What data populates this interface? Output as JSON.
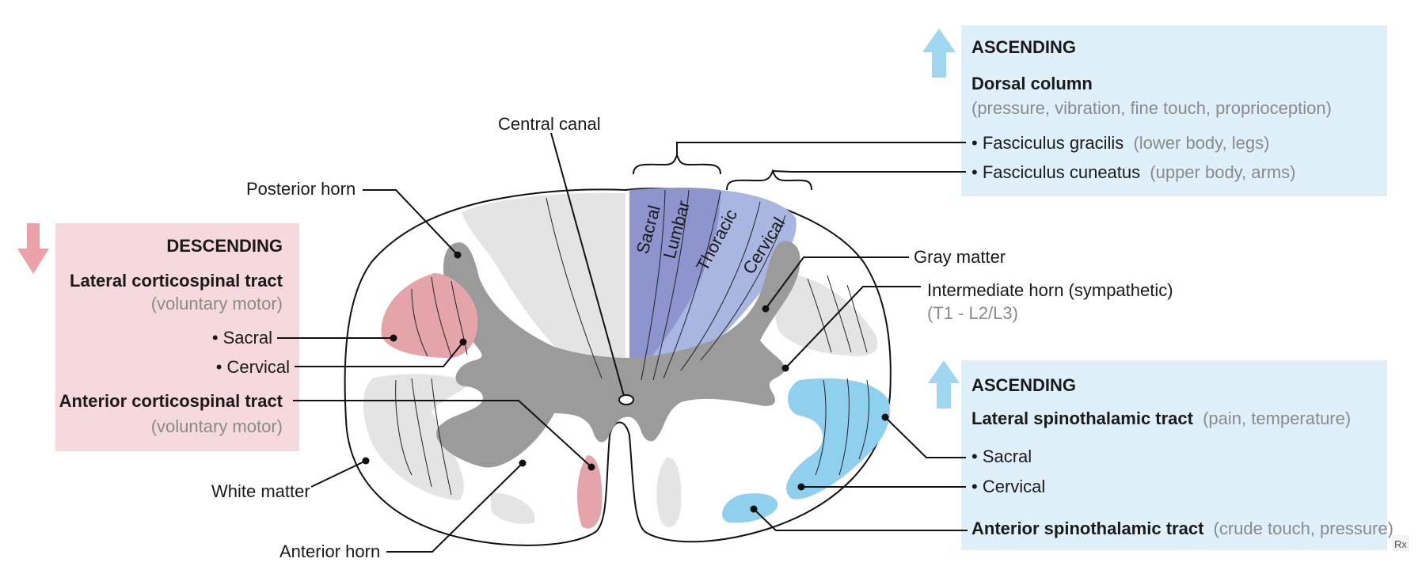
{
  "colors": {
    "descending_bg": "#f6d9dc",
    "descending_arrow": "#eaa1a8",
    "descending_tract": "#e4a5aa",
    "ascending_bg": "#dff0fa",
    "ascending_arrow": "#9fd6f0",
    "spinothalamic_tract": "#8fd0ee",
    "dorsal_column_dark": "#8e95ce",
    "dorsal_column_light": "#a9b6e1",
    "gray_matter": "#9b9b9b",
    "white_matter_tract": "#e4e4e4"
  },
  "icons": {
    "descending_arrow": "arrow-down-icon",
    "ascending_arrow_top": "arrow-up-icon",
    "ascending_arrow_bottom": "arrow-up-icon",
    "logo": "rx-logo"
  },
  "labels": {
    "central_canal": "Central canal",
    "posterior_horn": "Posterior horn",
    "gray_matter": "Gray matter",
    "intermediate_horn": "Intermediate horn (sympathetic)",
    "intermediate_horn_levels": "(T1 - L2/L3)",
    "white_matter": "White matter",
    "anterior_horn": "Anterior horn"
  },
  "dorsal_segments": {
    "sacral": "Sacral",
    "lumbar": "Lumbar",
    "thoracic": "Thoracic",
    "cervical": "Cervical"
  },
  "descending": {
    "heading": "DESCENDING",
    "lateral_tract": "Lateral corticospinal tract",
    "lateral_tract_note": "(voluntary motor)",
    "sacral": "• Sacral",
    "cervical": "• Cervical",
    "anterior_tract": "Anterior corticospinal tract",
    "anterior_tract_note": "(voluntary motor)"
  },
  "ascending_top": {
    "heading": "ASCENDING",
    "dorsal_column": "Dorsal column",
    "dorsal_column_note": "(pressure, vibration, fine touch, proprioception)",
    "gracilis": "• Fasciculus gracilis",
    "gracilis_note": "(lower body, legs)",
    "cuneatus": "• Fasciculus cuneatus",
    "cuneatus_note": "(upper body, arms)"
  },
  "ascending_bottom": {
    "heading": "ASCENDING",
    "lateral_tract": "Lateral spinothalamic tract",
    "lateral_tract_note": "(pain, temperature)",
    "sacral": "• Sacral",
    "cervical": "• Cervical",
    "anterior_tract": "Anterior spinothalamic tract",
    "anterior_tract_note": "(crude touch, pressure)"
  },
  "logo_text": "Rx"
}
